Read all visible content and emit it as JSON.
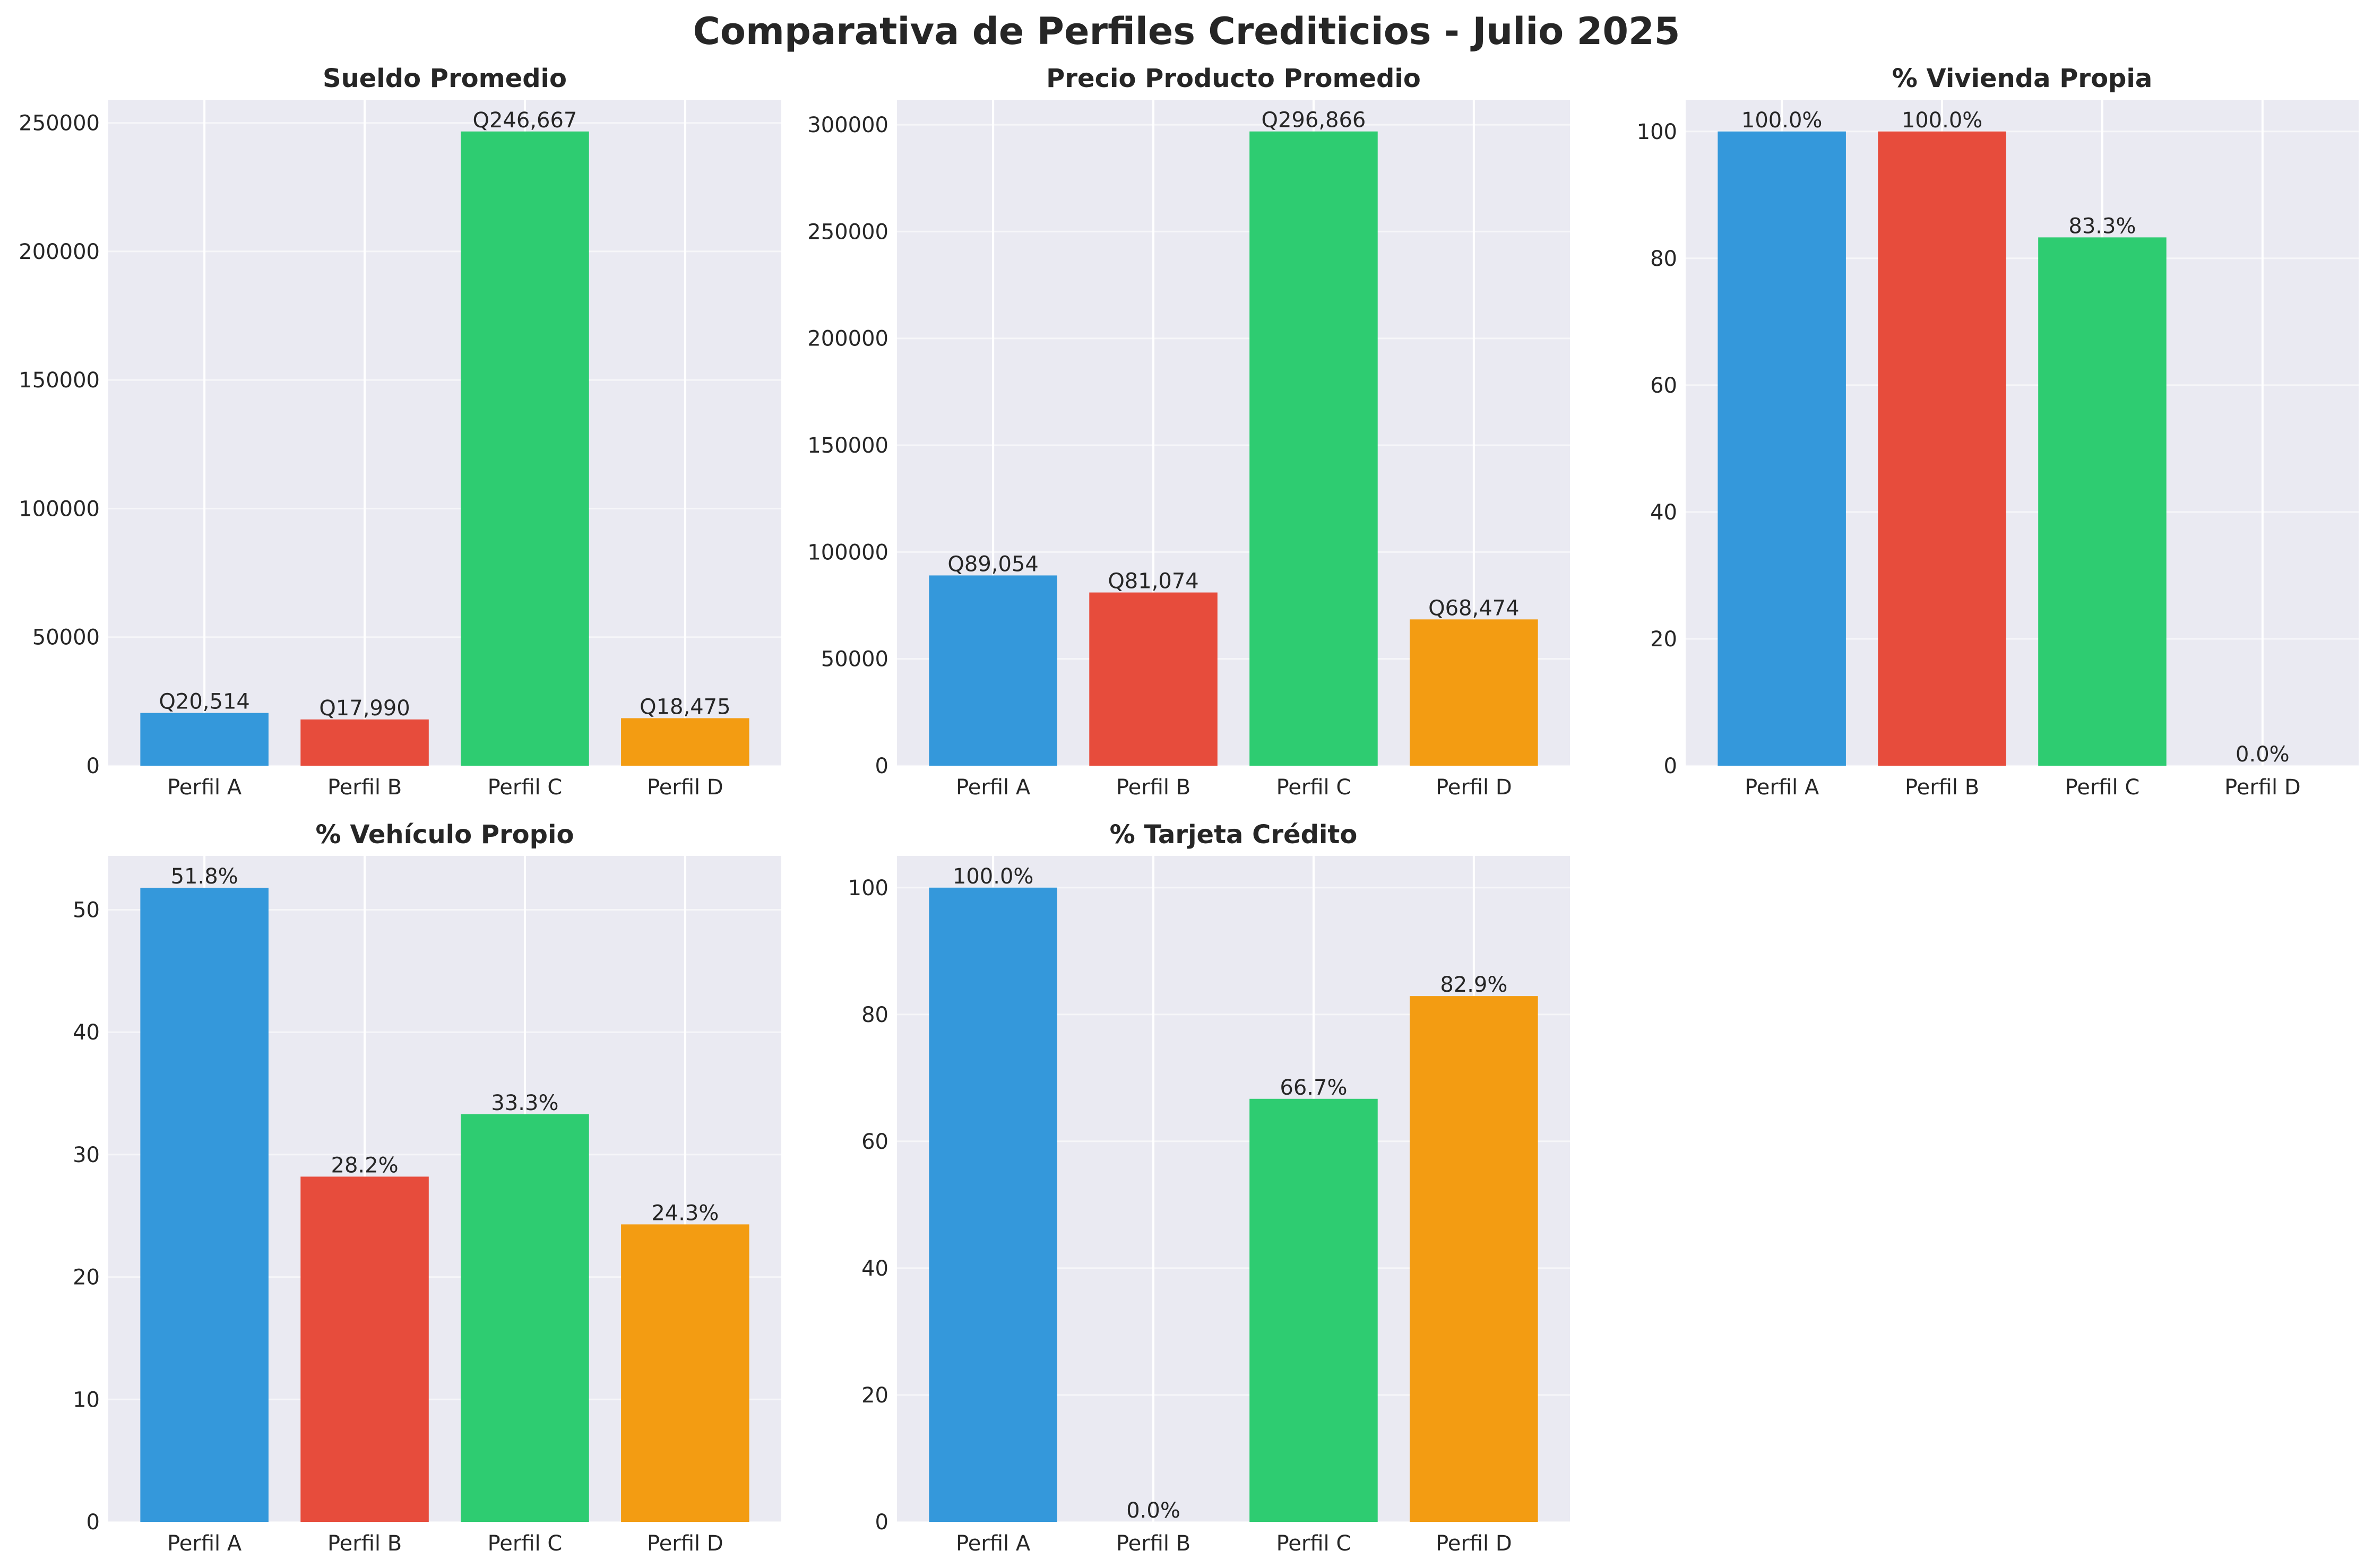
{
  "title": "Comparativa de Perfiles Crediticios - Julio 2025",
  "colors": {
    "Perfil A": "#3498db",
    "Perfil B": "#e74c3c",
    "Perfil C": "#2ecc71",
    "Perfil D": "#f39c12",
    "axes_background": "#eaeaf2",
    "grid": "#ffffff"
  },
  "chart_data": [
    {
      "type": "bar",
      "title": "Sueldo Promedio",
      "categories": [
        "Perfil A",
        "Perfil B",
        "Perfil C",
        "Perfil D"
      ],
      "values": [
        20514,
        17990,
        246667,
        18475
      ],
      "labels": [
        "Q20,514",
        "Q17,990",
        "Q246,667",
        "Q18,475"
      ],
      "ylim": [
        0,
        259000
      ],
      "yticks": [
        0,
        50000,
        100000,
        150000,
        200000,
        250000
      ],
      "grid": true
    },
    {
      "type": "bar",
      "title": "Precio Producto Promedio",
      "categories": [
        "Perfil A",
        "Perfil B",
        "Perfil C",
        "Perfil D"
      ],
      "values": [
        89054,
        81074,
        296866,
        68474
      ],
      "labels": [
        "Q89,054",
        "Q81,074",
        "Q296,866",
        "Q68,474"
      ],
      "ylim": [
        0,
        311700
      ],
      "yticks": [
        0,
        50000,
        100000,
        150000,
        200000,
        250000,
        300000
      ],
      "grid": true
    },
    {
      "type": "bar",
      "title": "% Vivienda Propia",
      "categories": [
        "Perfil A",
        "Perfil B",
        "Perfil C",
        "Perfil D"
      ],
      "values": [
        100.0,
        100.0,
        83.3,
        0.0
      ],
      "labels": [
        "100.0%",
        "100.0%",
        "83.3%",
        "0.0%"
      ],
      "ylim": [
        0,
        105
      ],
      "yticks": [
        0,
        20,
        40,
        60,
        80,
        100
      ],
      "grid": true
    },
    {
      "type": "bar",
      "title": "% Vehículo Propio",
      "categories": [
        "Perfil A",
        "Perfil B",
        "Perfil C",
        "Perfil D"
      ],
      "values": [
        51.8,
        28.2,
        33.3,
        24.3
      ],
      "labels": [
        "51.8%",
        "28.2%",
        "33.3%",
        "24.3%"
      ],
      "ylim": [
        0,
        54.4
      ],
      "yticks": [
        0,
        10,
        20,
        30,
        40,
        50
      ],
      "grid": true
    },
    {
      "type": "bar",
      "title": "% Tarjeta Crédito",
      "categories": [
        "Perfil A",
        "Perfil B",
        "Perfil C",
        "Perfil D"
      ],
      "values": [
        100.0,
        0.0,
        66.7,
        82.9
      ],
      "labels": [
        "100.0%",
        "0.0%",
        "66.7%",
        "82.9%"
      ],
      "ylim": [
        0,
        105
      ],
      "yticks": [
        0,
        20,
        40,
        60,
        80,
        100
      ],
      "grid": true
    }
  ]
}
